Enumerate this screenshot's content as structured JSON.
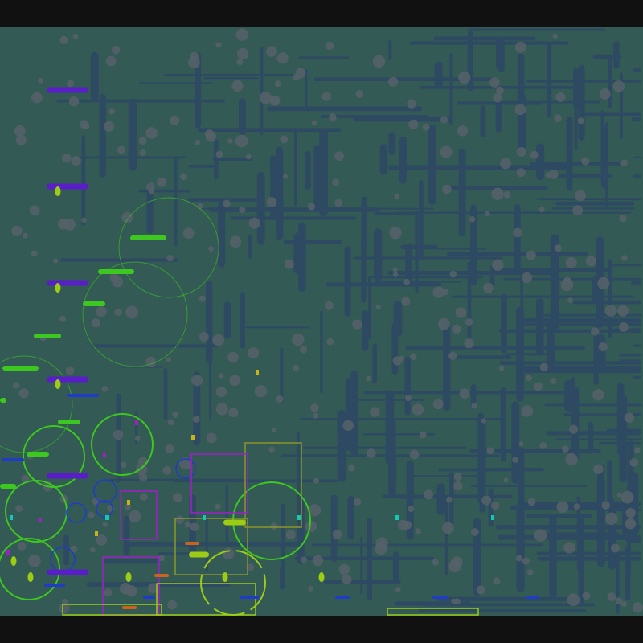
{
  "colors": {
    "letterbox": "#111111",
    "background": "#335a54",
    "grid_line": "#2e4a62",
    "obstacle": "#56616a",
    "agent_purple": "#5a1ec8",
    "agent_green": "#3cc81e",
    "agent_lime": "#9ccc14",
    "agent_blue": "#1e3cc8",
    "marker_magenta": "#a020c8",
    "marker_yellow": "#c8b414",
    "marker_cyan": "#14c8b4",
    "marker_orange": "#c8641e",
    "zone_olive": "#8c9628"
  },
  "zones": {
    "green_circles": 8,
    "blue_circles": 6,
    "rectangles": 7
  }
}
